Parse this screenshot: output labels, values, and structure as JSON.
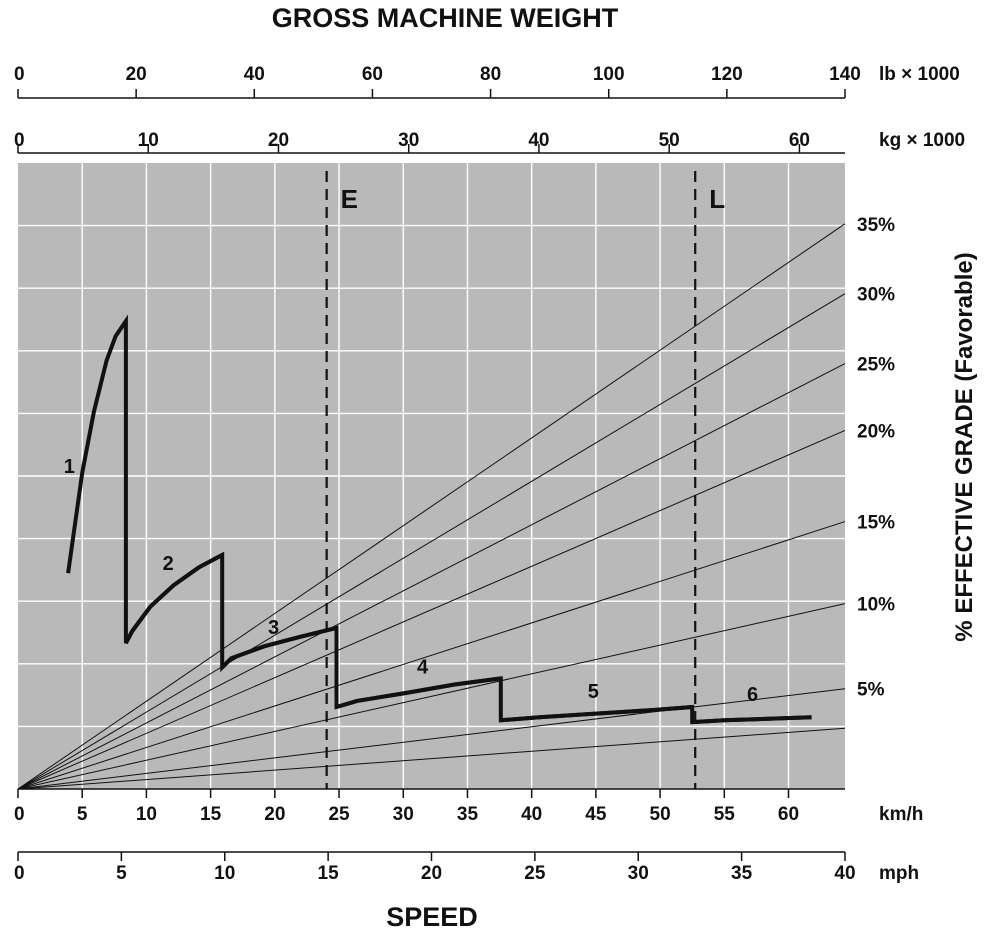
{
  "chart_data": {
    "type": "line",
    "title": "GROSS MACHINE WEIGHT",
    "xlabel": "SPEED",
    "ylabel": "% EFFECTIVE GRADE (Favorable)",
    "grid": true,
    "axes": {
      "top_lb": {
        "unit": "lb × 1000",
        "min": 0,
        "max": 140,
        "ticks": [
          "0",
          "20",
          "40",
          "60",
          "80",
          "100",
          "120",
          "140"
        ],
        "tick_values": [
          0,
          20,
          40,
          60,
          80,
          100,
          120,
          140
        ]
      },
      "top_kg": {
        "unit": "kg × 1000",
        "min": 0,
        "max": 63.5,
        "ticks": [
          "0",
          "10",
          "20",
          "30",
          "40",
          "50",
          "60"
        ],
        "tick_values": [
          0,
          10,
          20,
          30,
          40,
          50,
          60
        ]
      },
      "bottom_kmh": {
        "unit": "km/h",
        "min": 0,
        "max": 64.4,
        "ticks": [
          "0",
          "5",
          "10",
          "15",
          "20",
          "25",
          "30",
          "35",
          "40",
          "45",
          "50",
          "55",
          "60"
        ],
        "tick_values": [
          0,
          5,
          10,
          15,
          20,
          25,
          30,
          35,
          40,
          45,
          50,
          55,
          60
        ]
      },
      "bottom_mph": {
        "unit": "mph",
        "min": 0,
        "max": 40,
        "ticks": [
          "0",
          "5",
          "10",
          "15",
          "20",
          "25",
          "30",
          "35",
          "40"
        ],
        "tick_values": [
          0,
          5,
          10,
          15,
          20,
          25,
          30,
          35,
          40
        ]
      }
    },
    "grade_lines": [
      {
        "label": "35%",
        "speed_kmh": 64.4,
        "level": 9.3
      },
      {
        "label": "30%",
        "speed_kmh": 64.4,
        "level": 8.15
      },
      {
        "label": "25%",
        "speed_kmh": 64.4,
        "level": 7.0
      },
      {
        "label": "20%",
        "speed_kmh": 64.4,
        "level": 5.9
      },
      {
        "label": "15%",
        "speed_kmh": 64.4,
        "level": 4.4
      },
      {
        "label": "10%",
        "speed_kmh": 64.4,
        "level": 3.05
      },
      {
        "label": "5%",
        "speed_kmh": 64.4,
        "level": 1.65
      },
      {
        "label": "",
        "speed_kmh": 64.4,
        "level": 1.0
      }
    ],
    "grade_level_max": 10.3,
    "weight_markers": [
      {
        "label": "E",
        "kg_x1000": 23.7
      },
      {
        "label": "L",
        "kg_x1000": 52.0
      }
    ],
    "series": [
      {
        "name": "1",
        "points": [
          [
            3.9,
            3.55
          ],
          [
            4.4,
            4.3
          ],
          [
            5.0,
            5.2
          ],
          [
            5.9,
            6.2
          ],
          [
            6.9,
            7.05
          ],
          [
            7.6,
            7.45
          ],
          [
            8.4,
            7.7
          ],
          [
            8.4,
            2.4
          ],
          [
            8.9,
            2.6
          ],
          [
            10.3,
            3.0
          ],
          [
            12.1,
            3.35
          ],
          [
            14.1,
            3.65
          ],
          [
            15.9,
            3.85
          ]
        ],
        "label_at": [
          4.0,
          5.2
        ]
      },
      {
        "name": "2",
        "points": [
          [
            8.4,
            2.4
          ],
          [
            8.9,
            2.6
          ],
          [
            10.3,
            3.0
          ],
          [
            12.1,
            3.35
          ],
          [
            14.1,
            3.65
          ],
          [
            15.9,
            3.85
          ],
          [
            15.9,
            2.0
          ],
          [
            16.6,
            2.15
          ],
          [
            19.2,
            2.35
          ],
          [
            21.9,
            2.5
          ],
          [
            24.8,
            2.65
          ]
        ],
        "label_at": [
          11.7,
          3.6
        ]
      },
      {
        "name": "3",
        "points": [
          [
            15.9,
            2.0
          ],
          [
            16.6,
            2.15
          ],
          [
            19.2,
            2.35
          ],
          [
            21.9,
            2.5
          ],
          [
            24.8,
            2.65
          ],
          [
            24.8,
            1.35
          ],
          [
            26.4,
            1.45
          ],
          [
            30.2,
            1.58
          ],
          [
            34.0,
            1.72
          ],
          [
            37.6,
            1.82
          ]
        ],
        "label_at": [
          19.9,
          2.55
        ]
      },
      {
        "name": "4",
        "points": [
          [
            24.8,
            1.35
          ],
          [
            26.4,
            1.45
          ],
          [
            30.2,
            1.58
          ],
          [
            34.0,
            1.72
          ],
          [
            37.6,
            1.82
          ],
          [
            37.6,
            1.13
          ],
          [
            40.6,
            1.18
          ],
          [
            45.0,
            1.24
          ],
          [
            49.5,
            1.3
          ],
          [
            52.5,
            1.35
          ]
        ],
        "label_at": [
          31.5,
          1.9
        ]
      },
      {
        "name": "5",
        "points": [
          [
            37.6,
            1.13
          ],
          [
            40.6,
            1.18
          ],
          [
            45.0,
            1.24
          ],
          [
            49.5,
            1.3
          ],
          [
            52.5,
            1.35
          ],
          [
            52.5,
            1.1
          ],
          [
            55.0,
            1.13
          ],
          [
            59.0,
            1.16
          ],
          [
            61.8,
            1.18
          ]
        ],
        "label_at": [
          44.8,
          1.5
        ]
      },
      {
        "name": "6",
        "points": [
          [
            52.5,
            1.1
          ],
          [
            55.0,
            1.13
          ],
          [
            59.0,
            1.16
          ],
          [
            61.8,
            1.18
          ]
        ],
        "label_at": [
          57.2,
          1.45
        ]
      }
    ]
  }
}
